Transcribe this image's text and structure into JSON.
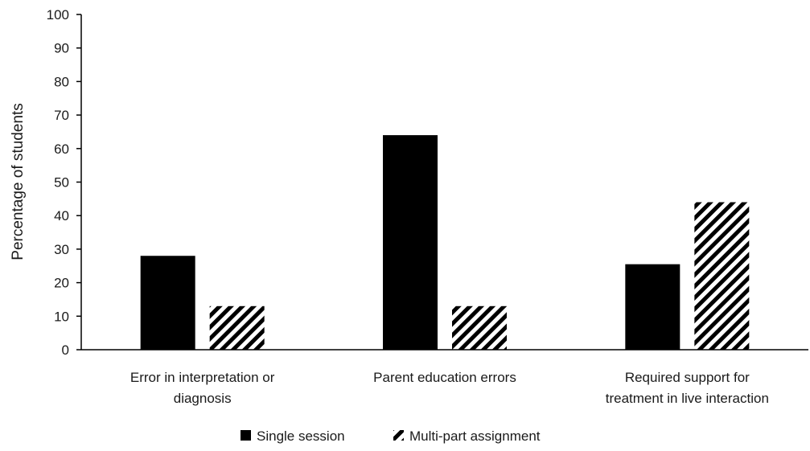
{
  "chart_data": {
    "type": "bar",
    "title": "",
    "xlabel": "",
    "ylabel": "Percentage of students",
    "ylim": [
      0,
      100
    ],
    "yticks": [
      0,
      10,
      20,
      30,
      40,
      50,
      60,
      70,
      80,
      90,
      100
    ],
    "grid": false,
    "legend_position": "bottom",
    "categories": [
      [
        "Error in interpretation or",
        "diagnosis"
      ],
      [
        "Parent education errors"
      ],
      [
        "Required support for",
        "treatment in live interaction"
      ]
    ],
    "series": [
      {
        "name": "Single session",
        "values": [
          28,
          64,
          25.5
        ],
        "pattern": "solid",
        "color": "#000000"
      },
      {
        "name": "Multi-part assignment",
        "values": [
          13,
          13,
          44
        ],
        "pattern": "diagonal-stripes",
        "color": "#000000"
      }
    ]
  }
}
